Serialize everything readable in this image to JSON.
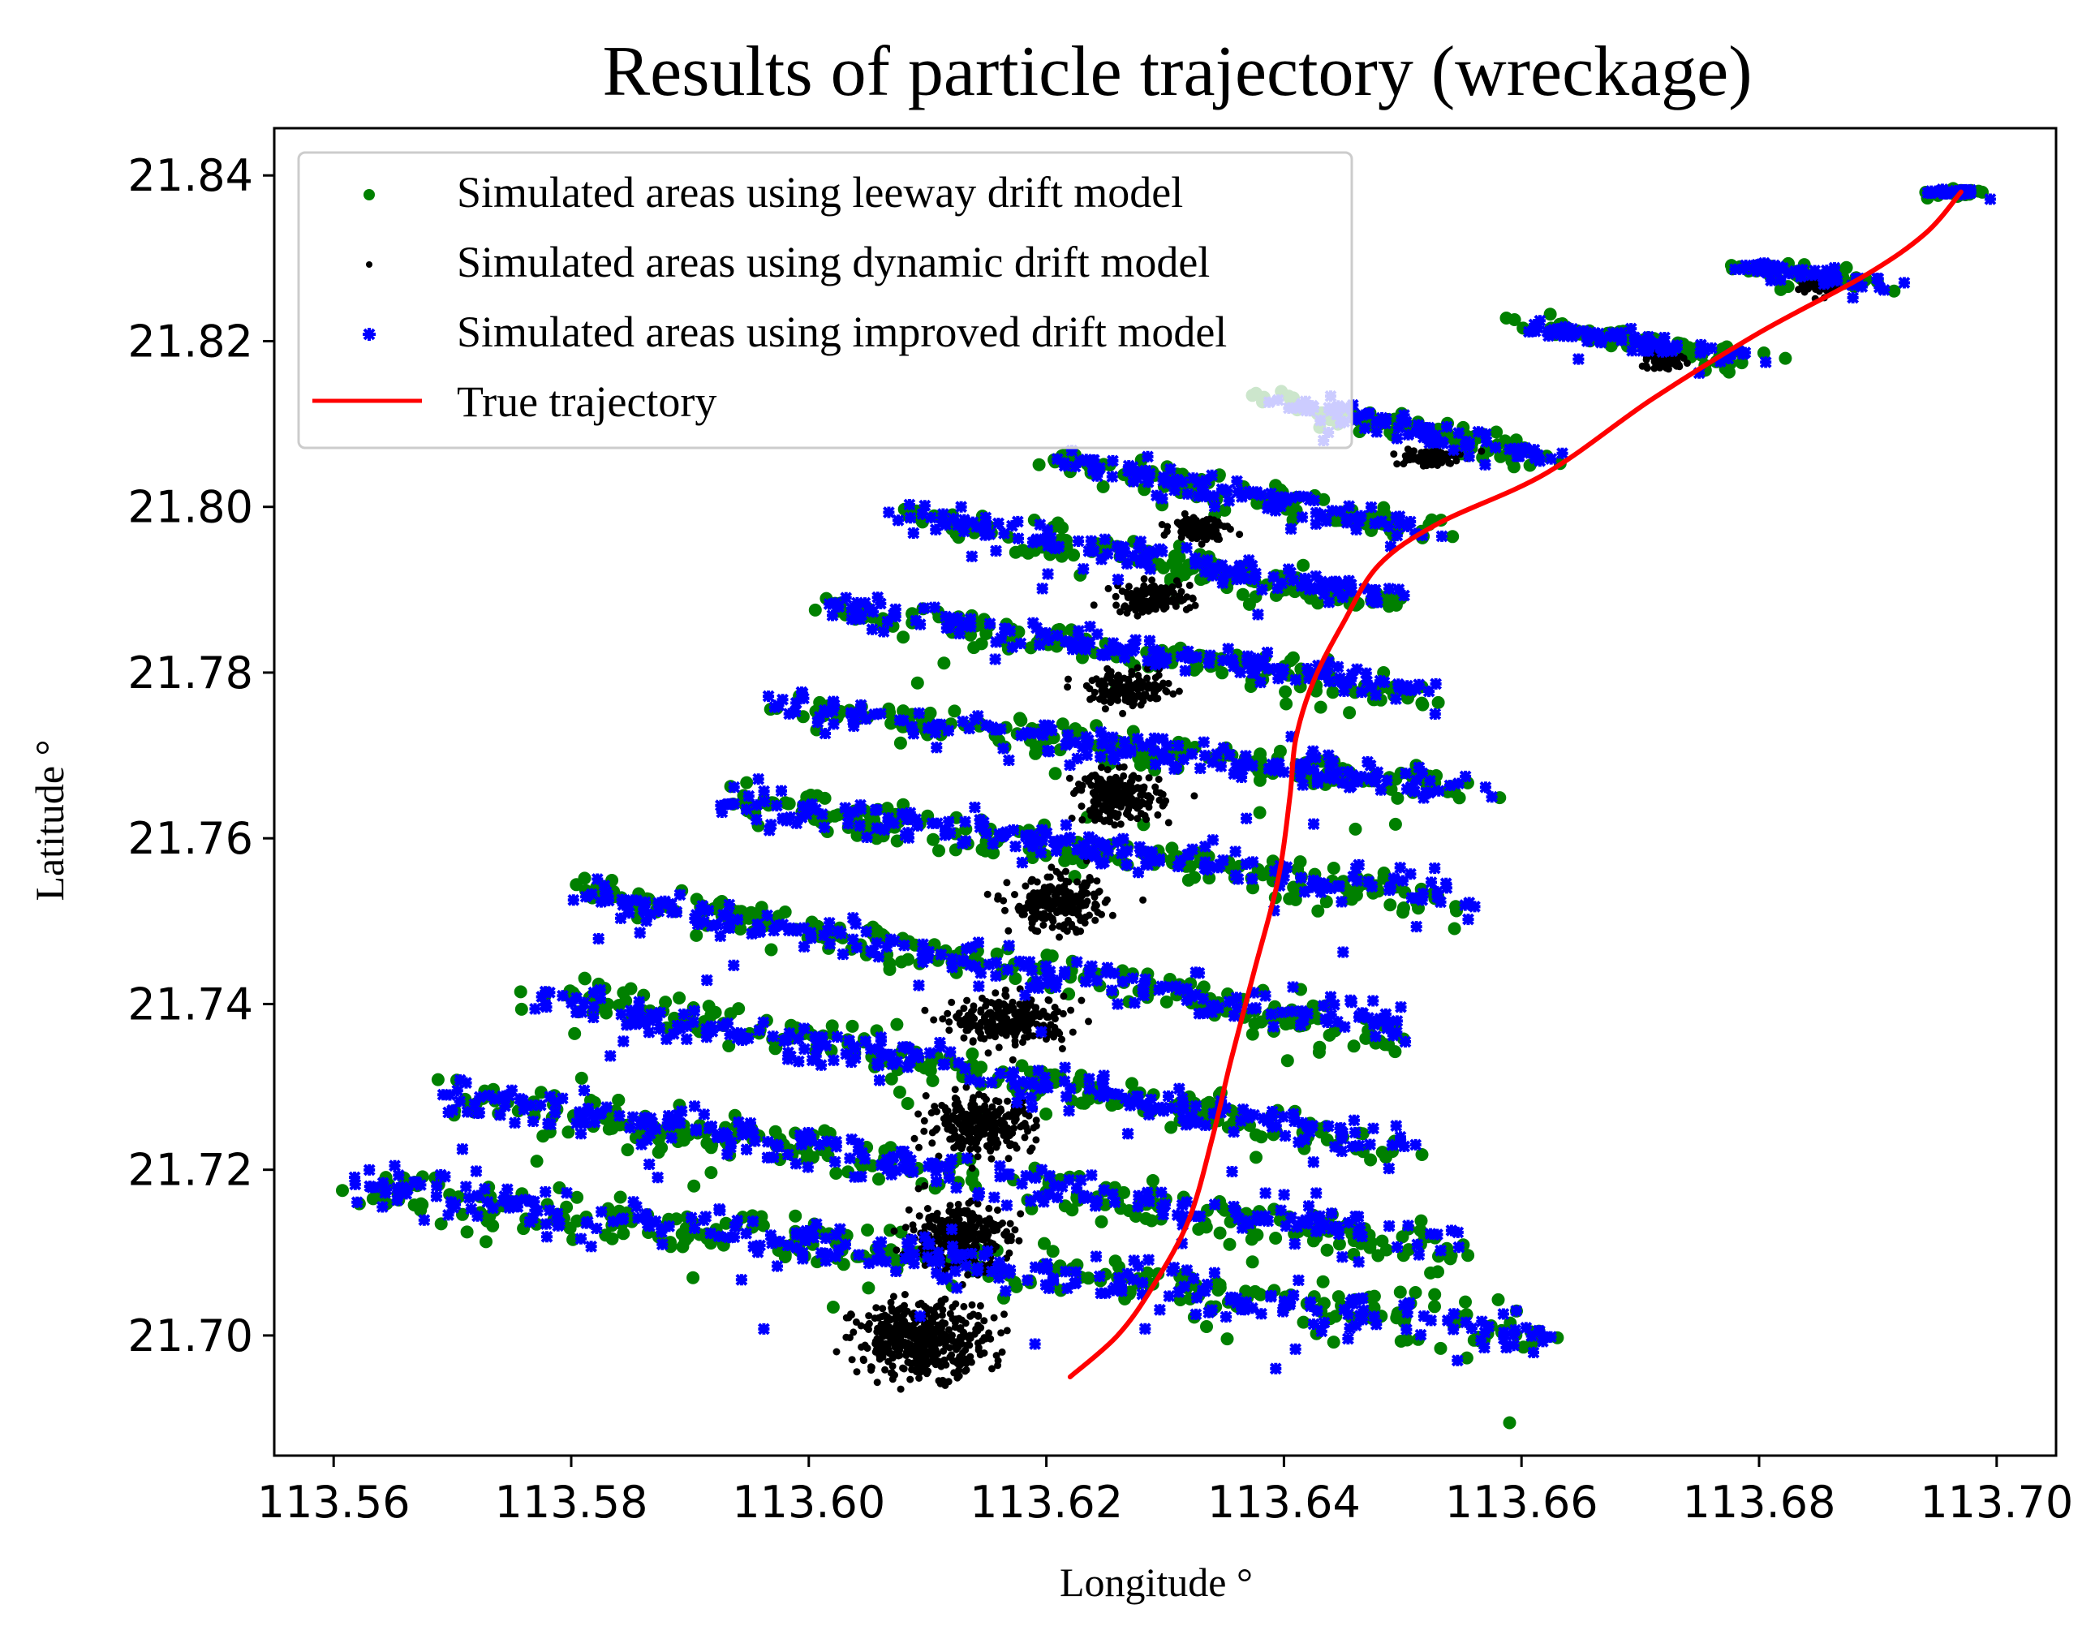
{
  "chart_data": {
    "type": "scatter",
    "title": "Results of particle trajectory (wreckage)",
    "xlabel": "Longitude °",
    "ylabel": "Latitude °",
    "xlim": [
      113.555,
      113.705
    ],
    "ylim": [
      21.6855,
      21.8457
    ],
    "x_ticks": [
      113.56,
      113.58,
      113.6,
      113.62,
      113.64,
      113.66,
      113.68,
      113.7
    ],
    "x_tick_labels": [
      "113.56",
      "113.58",
      "113.60",
      "113.62",
      "113.64",
      "113.66",
      "113.68",
      "113.70"
    ],
    "y_ticks": [
      21.7,
      21.72,
      21.74,
      21.76,
      21.78,
      21.8,
      21.82,
      21.84
    ],
    "y_tick_labels": [
      "21.70",
      "21.72",
      "21.74",
      "21.76",
      "21.78",
      "21.80",
      "21.82",
      "21.84"
    ],
    "legend_position": "top-left",
    "series": [
      {
        "name": "Simulated areas using leeway drift model",
        "marker": "dot",
        "color": "#008000",
        "clusters": [
          {
            "x0": 113.562,
            "x1": 113.663,
            "y0": 21.718,
            "y1": 21.7,
            "spread": 0.0025
          },
          {
            "x0": 113.57,
            "x1": 113.655,
            "y0": 21.729,
            "y1": 21.71,
            "spread": 0.0022
          },
          {
            "x0": 113.577,
            "x1": 113.651,
            "y0": 21.742,
            "y1": 21.722,
            "spread": 0.0022
          },
          {
            "x0": 113.581,
            "x1": 113.65,
            "y0": 21.754,
            "y1": 21.736,
            "spread": 0.002
          },
          {
            "x0": 113.593,
            "x1": 113.655,
            "y0": 21.765,
            "y1": 21.752,
            "spread": 0.002
          },
          {
            "x0": 113.598,
            "x1": 113.656,
            "y0": 21.776,
            "y1": 21.766,
            "spread": 0.0018
          },
          {
            "x0": 113.602,
            "x1": 113.653,
            "y0": 21.788,
            "y1": 21.777,
            "spread": 0.0016
          },
          {
            "x0": 113.608,
            "x1": 113.65,
            "y0": 21.799,
            "y1": 21.788,
            "spread": 0.0016
          },
          {
            "x0": 113.621,
            "x1": 113.652,
            "y0": 21.806,
            "y1": 21.797,
            "spread": 0.0014
          },
          {
            "x0": 113.639,
            "x1": 113.662,
            "y0": 21.813,
            "y1": 21.806,
            "spread": 0.0012
          },
          {
            "x0": 113.661,
            "x1": 113.679,
            "y0": 21.822,
            "y1": 21.818,
            "spread": 0.001
          },
          {
            "x0": 113.679,
            "x1": 113.69,
            "y0": 21.829,
            "y1": 21.827,
            "spread": 0.0008
          },
          {
            "x0": 113.696,
            "x1": 113.697,
            "y0": 21.838,
            "y1": 21.838,
            "spread": 0.0004
          }
        ]
      },
      {
        "name": "Simulated areas using dynamic drift model",
        "marker": "small-dot",
        "color": "#000000",
        "clusters": [
          {
            "x": 113.6095,
            "y": 21.6995,
            "sx": 0.0028,
            "sy": 0.0022,
            "n": 420
          },
          {
            "x": 113.6125,
            "y": 21.712,
            "sx": 0.0022,
            "sy": 0.002,
            "n": 280
          },
          {
            "x": 113.6145,
            "y": 21.7255,
            "sx": 0.0022,
            "sy": 0.0016,
            "n": 260
          },
          {
            "x": 113.617,
            "y": 21.738,
            "sx": 0.0024,
            "sy": 0.0014,
            "n": 240
          },
          {
            "x": 113.621,
            "y": 21.752,
            "sx": 0.002,
            "sy": 0.0016,
            "n": 220
          },
          {
            "x": 113.626,
            "y": 21.765,
            "sx": 0.0018,
            "sy": 0.0015,
            "n": 200
          },
          {
            "x": 113.627,
            "y": 21.778,
            "sx": 0.0017,
            "sy": 0.001,
            "n": 150
          },
          {
            "x": 113.629,
            "y": 21.789,
            "sx": 0.0016,
            "sy": 0.0009,
            "n": 130
          },
          {
            "x": 113.633,
            "y": 21.7975,
            "sx": 0.0012,
            "sy": 0.0007,
            "n": 100
          },
          {
            "x": 113.652,
            "y": 21.806,
            "sx": 0.0014,
            "sy": 0.0006,
            "n": 80
          },
          {
            "x": 113.672,
            "y": 21.8175,
            "sx": 0.001,
            "sy": 0.0005,
            "n": 60
          },
          {
            "x": 113.685,
            "y": 21.8265,
            "sx": 0.0008,
            "sy": 0.0005,
            "n": 40
          }
        ]
      },
      {
        "name": "Simulated areas using improved drift model",
        "marker": "x",
        "color": "#0000ff",
        "clusters": [
          {
            "x0": 113.562,
            "x1": 113.662,
            "y0": 21.718,
            "y1": 21.7,
            "spread": 0.0023
          },
          {
            "x0": 113.57,
            "x1": 113.654,
            "y0": 21.729,
            "y1": 21.711,
            "spread": 0.0021
          },
          {
            "x0": 113.577,
            "x1": 113.65,
            "y0": 21.741,
            "y1": 21.723,
            "spread": 0.0021
          },
          {
            "x0": 113.581,
            "x1": 113.65,
            "y0": 21.753,
            "y1": 21.737,
            "spread": 0.0019
          },
          {
            "x0": 113.593,
            "x1": 113.655,
            "y0": 21.765,
            "y1": 21.753,
            "spread": 0.0019
          },
          {
            "x0": 113.598,
            "x1": 113.655,
            "y0": 21.776,
            "y1": 21.766,
            "spread": 0.0017
          },
          {
            "x0": 113.602,
            "x1": 113.652,
            "y0": 21.788,
            "y1": 21.778,
            "spread": 0.0015
          },
          {
            "x0": 113.608,
            "x1": 113.65,
            "y0": 21.799,
            "y1": 21.789,
            "spread": 0.0015
          },
          {
            "x0": 113.621,
            "x1": 113.652,
            "y0": 21.806,
            "y1": 21.797,
            "spread": 0.0013
          },
          {
            "x0": 113.639,
            "x1": 113.662,
            "y0": 21.813,
            "y1": 21.806,
            "spread": 0.0011
          },
          {
            "x0": 113.661,
            "x1": 113.679,
            "y0": 21.822,
            "y1": 21.818,
            "spread": 0.0009
          },
          {
            "x0": 113.679,
            "x1": 113.69,
            "y0": 21.829,
            "y1": 21.827,
            "spread": 0.0007
          },
          {
            "x0": 113.696,
            "x1": 113.697,
            "y0": 21.838,
            "y1": 21.838,
            "spread": 0.0004
          }
        ]
      },
      {
        "name": "True trajectory",
        "marker": "line",
        "color": "#ff0000",
        "x": [
          113.622,
          113.626,
          113.629,
          113.632,
          113.634,
          113.6355,
          113.6375,
          113.6395,
          113.6405,
          113.641,
          113.6425,
          113.645,
          113.648,
          113.653,
          113.662,
          113.671,
          113.68,
          113.689,
          113.694,
          113.697
        ],
        "y": [
          21.695,
          21.7,
          21.706,
          21.714,
          21.724,
          21.733,
          21.744,
          21.755,
          21.765,
          21.772,
          21.779,
          21.786,
          21.793,
          21.798,
          21.804,
          21.813,
          21.821,
          21.828,
          21.833,
          21.838
        ]
      }
    ]
  }
}
